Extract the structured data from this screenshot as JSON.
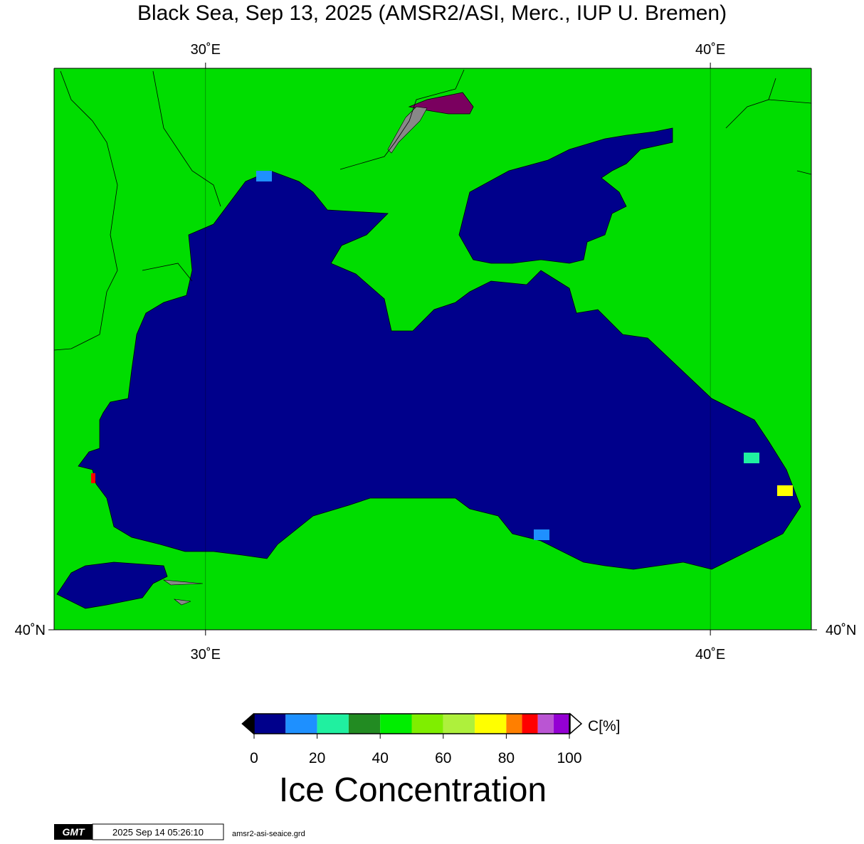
{
  "title": "Black Sea, Sep 13, 2025 (AMSR2/ASI, Merc., IUP U. Bremen)",
  "map": {
    "lon_range": [
      27,
      42
    ],
    "lon_ticks": [
      {
        "value": 30,
        "label": "30˚E"
      },
      {
        "value": 40,
        "label": "40˚E"
      }
    ],
    "lat_ticks": [
      {
        "value": 40,
        "label": "40˚N"
      }
    ]
  },
  "colorbar": {
    "bins": [
      0,
      10,
      20,
      30,
      40,
      50,
      60,
      70,
      80,
      85,
      90,
      95,
      100
    ],
    "colors": [
      "#00008b",
      "#1e90ff",
      "#20f0a0",
      "#228b22",
      "#00ee00",
      "#7fee00",
      "#aef03c",
      "#ffff00",
      "#ff7f00",
      "#ff0000",
      "#ba55d3",
      "#9400d3"
    ],
    "ticks": [
      0,
      20,
      40,
      60,
      80,
      100
    ],
    "unit": "C[%]",
    "title": "Ice Concentration"
  },
  "footer": {
    "logo": "GMT",
    "timestamp": "2025 Sep 14 05:26:10",
    "file": "amsr2-asi-seaice.grd"
  }
}
